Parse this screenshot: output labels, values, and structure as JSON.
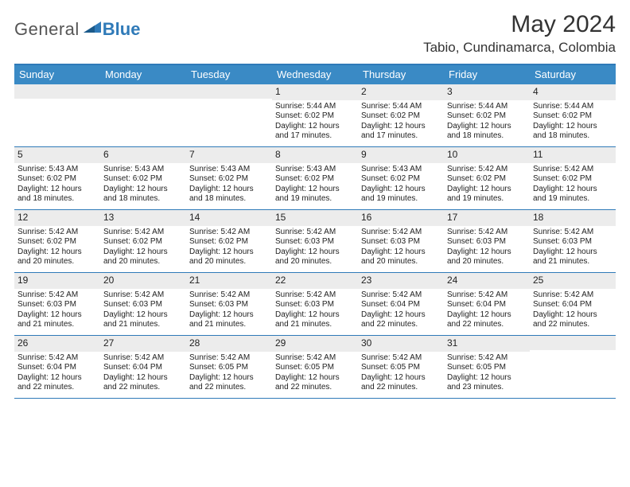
{
  "logo": {
    "text1": "General",
    "text2": "Blue"
  },
  "title": "May 2024",
  "location": "Tabio, Cundinamarca, Colombia",
  "colors": {
    "header_bg": "#3a8ac5",
    "border": "#2f7ab8",
    "daynum_bg": "#ececec",
    "logo_gray": "#555555",
    "logo_blue": "#2f7ab8"
  },
  "dayNames": [
    "Sunday",
    "Monday",
    "Tuesday",
    "Wednesday",
    "Thursday",
    "Friday",
    "Saturday"
  ],
  "labels": {
    "sunrise": "Sunrise: ",
    "sunset": "Sunset: ",
    "daylight": "Daylight: "
  },
  "weeks": [
    [
      null,
      null,
      null,
      {
        "n": "1",
        "sr": "5:44 AM",
        "ss": "6:02 PM",
        "dl": "12 hours and 17 minutes."
      },
      {
        "n": "2",
        "sr": "5:44 AM",
        "ss": "6:02 PM",
        "dl": "12 hours and 17 minutes."
      },
      {
        "n": "3",
        "sr": "5:44 AM",
        "ss": "6:02 PM",
        "dl": "12 hours and 18 minutes."
      },
      {
        "n": "4",
        "sr": "5:44 AM",
        "ss": "6:02 PM",
        "dl": "12 hours and 18 minutes."
      }
    ],
    [
      {
        "n": "5",
        "sr": "5:43 AM",
        "ss": "6:02 PM",
        "dl": "12 hours and 18 minutes."
      },
      {
        "n": "6",
        "sr": "5:43 AM",
        "ss": "6:02 PM",
        "dl": "12 hours and 18 minutes."
      },
      {
        "n": "7",
        "sr": "5:43 AM",
        "ss": "6:02 PM",
        "dl": "12 hours and 18 minutes."
      },
      {
        "n": "8",
        "sr": "5:43 AM",
        "ss": "6:02 PM",
        "dl": "12 hours and 19 minutes."
      },
      {
        "n": "9",
        "sr": "5:43 AM",
        "ss": "6:02 PM",
        "dl": "12 hours and 19 minutes."
      },
      {
        "n": "10",
        "sr": "5:42 AM",
        "ss": "6:02 PM",
        "dl": "12 hours and 19 minutes."
      },
      {
        "n": "11",
        "sr": "5:42 AM",
        "ss": "6:02 PM",
        "dl": "12 hours and 19 minutes."
      }
    ],
    [
      {
        "n": "12",
        "sr": "5:42 AM",
        "ss": "6:02 PM",
        "dl": "12 hours and 20 minutes."
      },
      {
        "n": "13",
        "sr": "5:42 AM",
        "ss": "6:02 PM",
        "dl": "12 hours and 20 minutes."
      },
      {
        "n": "14",
        "sr": "5:42 AM",
        "ss": "6:02 PM",
        "dl": "12 hours and 20 minutes."
      },
      {
        "n": "15",
        "sr": "5:42 AM",
        "ss": "6:03 PM",
        "dl": "12 hours and 20 minutes."
      },
      {
        "n": "16",
        "sr": "5:42 AM",
        "ss": "6:03 PM",
        "dl": "12 hours and 20 minutes."
      },
      {
        "n": "17",
        "sr": "5:42 AM",
        "ss": "6:03 PM",
        "dl": "12 hours and 20 minutes."
      },
      {
        "n": "18",
        "sr": "5:42 AM",
        "ss": "6:03 PM",
        "dl": "12 hours and 21 minutes."
      }
    ],
    [
      {
        "n": "19",
        "sr": "5:42 AM",
        "ss": "6:03 PM",
        "dl": "12 hours and 21 minutes."
      },
      {
        "n": "20",
        "sr": "5:42 AM",
        "ss": "6:03 PM",
        "dl": "12 hours and 21 minutes."
      },
      {
        "n": "21",
        "sr": "5:42 AM",
        "ss": "6:03 PM",
        "dl": "12 hours and 21 minutes."
      },
      {
        "n": "22",
        "sr": "5:42 AM",
        "ss": "6:03 PM",
        "dl": "12 hours and 21 minutes."
      },
      {
        "n": "23",
        "sr": "5:42 AM",
        "ss": "6:04 PM",
        "dl": "12 hours and 22 minutes."
      },
      {
        "n": "24",
        "sr": "5:42 AM",
        "ss": "6:04 PM",
        "dl": "12 hours and 22 minutes."
      },
      {
        "n": "25",
        "sr": "5:42 AM",
        "ss": "6:04 PM",
        "dl": "12 hours and 22 minutes."
      }
    ],
    [
      {
        "n": "26",
        "sr": "5:42 AM",
        "ss": "6:04 PM",
        "dl": "12 hours and 22 minutes."
      },
      {
        "n": "27",
        "sr": "5:42 AM",
        "ss": "6:04 PM",
        "dl": "12 hours and 22 minutes."
      },
      {
        "n": "28",
        "sr": "5:42 AM",
        "ss": "6:05 PM",
        "dl": "12 hours and 22 minutes."
      },
      {
        "n": "29",
        "sr": "5:42 AM",
        "ss": "6:05 PM",
        "dl": "12 hours and 22 minutes."
      },
      {
        "n": "30",
        "sr": "5:42 AM",
        "ss": "6:05 PM",
        "dl": "12 hours and 22 minutes."
      },
      {
        "n": "31",
        "sr": "5:42 AM",
        "ss": "6:05 PM",
        "dl": "12 hours and 23 minutes."
      },
      null
    ]
  ]
}
